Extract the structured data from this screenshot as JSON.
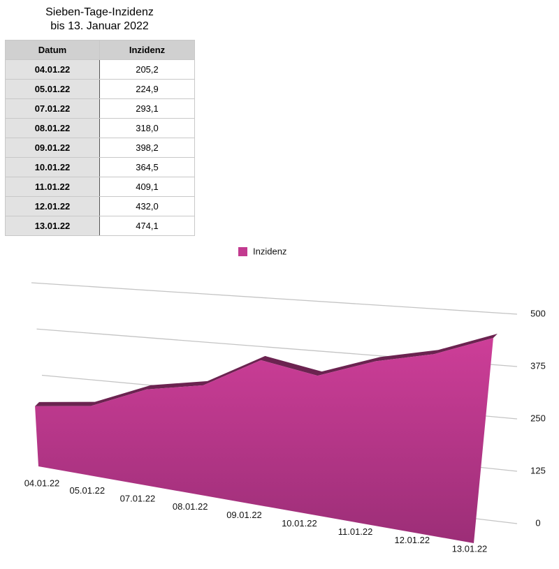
{
  "header": {
    "title": "Sieben-Tage-Inzidenz",
    "subtitle": "bis 13. Januar 2022"
  },
  "table": {
    "columns": [
      "Datum",
      "Inzidenz"
    ],
    "rows": [
      [
        "04.01.22",
        "205,2"
      ],
      [
        "05.01.22",
        "224,9"
      ],
      [
        "07.01.22",
        "293,1"
      ],
      [
        "08.01.22",
        "318,0"
      ],
      [
        "09.01.22",
        "398,2"
      ],
      [
        "10.01.22",
        "364,5"
      ],
      [
        "11.01.22",
        "409,1"
      ],
      [
        "12.01.22",
        "432,0"
      ],
      [
        "13.01.22",
        "474,1"
      ]
    ]
  },
  "chart_data": {
    "type": "area",
    "categories": [
      "04.01.22",
      "05.01.22",
      "07.01.22",
      "08.01.22",
      "09.01.22",
      "10.01.22",
      "11.01.22",
      "12.01.22",
      "13.01.22"
    ],
    "series": [
      {
        "name": "Inzidenz",
        "color": "#c23a8f",
        "values": [
          205.2,
          224.9,
          293.1,
          318.0,
          398.2,
          364.5,
          409.1,
          432.0,
          474.1
        ]
      }
    ],
    "ylim": [
      0,
      500
    ],
    "yticks": [
      0,
      125,
      250,
      375,
      500
    ],
    "grid": true,
    "legend": "top"
  }
}
